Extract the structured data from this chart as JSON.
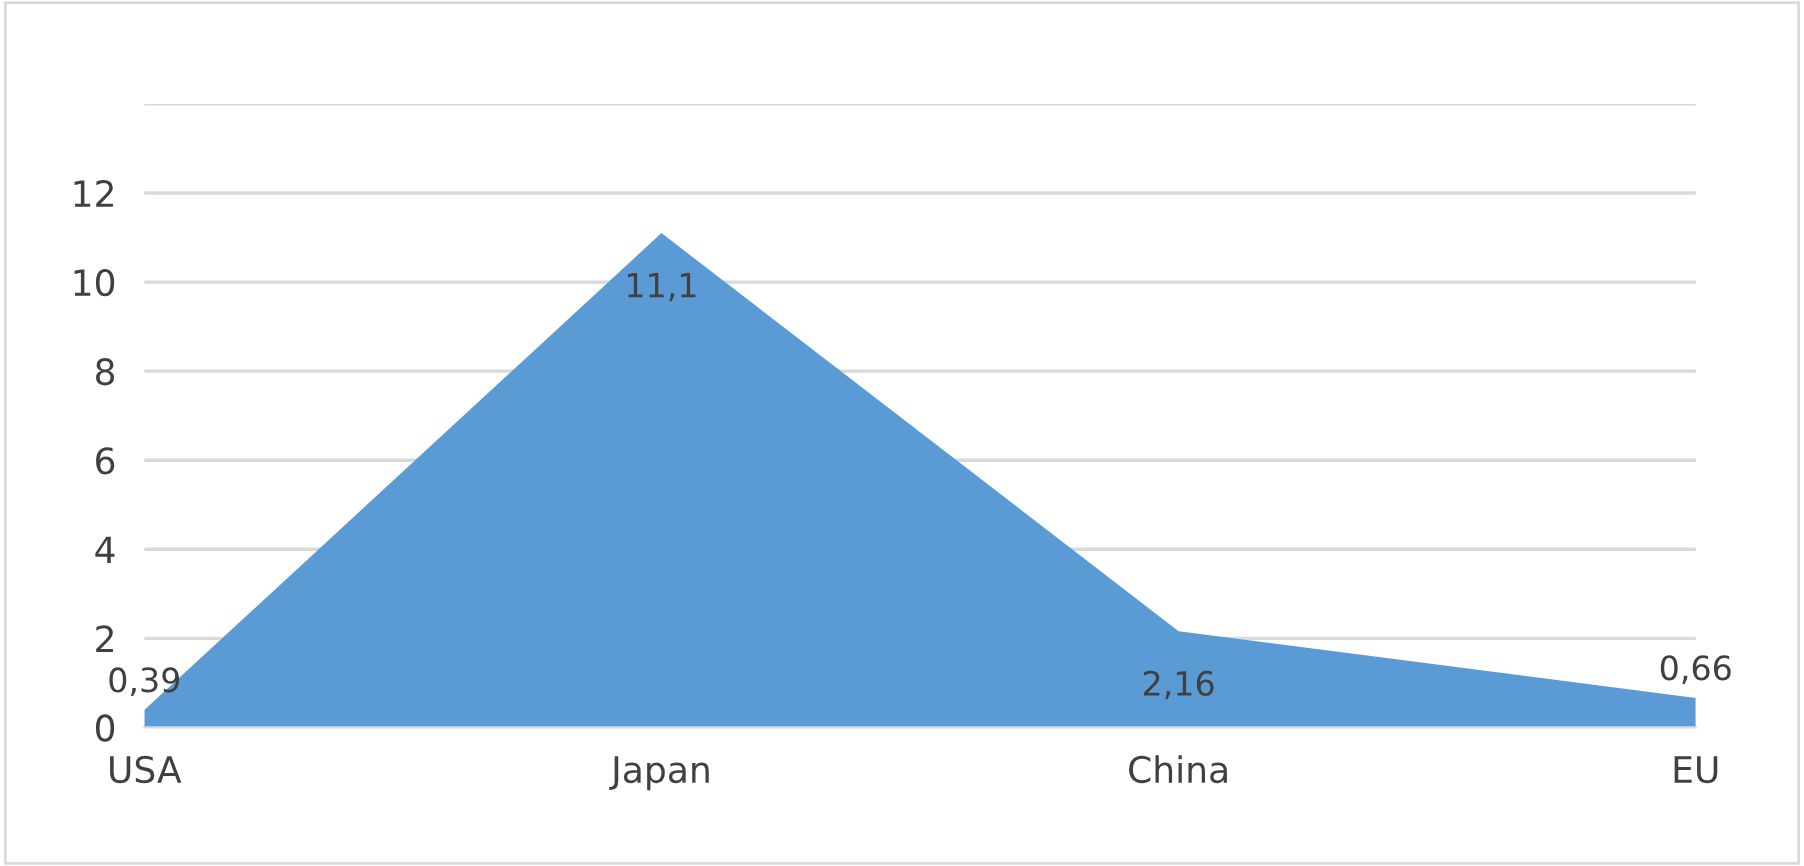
{
  "chart_data": {
    "type": "area",
    "categories": [
      "USA",
      "Japan",
      "China",
      "EU"
    ],
    "series": [
      {
        "color": "#5b9bd5",
        "values": [
          0.39,
          11.1,
          2.16,
          0.66
        ],
        "value_labels": [
          "0,39",
          "11,1",
          "2,16",
          "0,66"
        ]
      }
    ],
    "ylim": [
      0,
      14
    ],
    "yticks": [
      0,
      2,
      4,
      6,
      8,
      10,
      12,
      {
        "value": 14,
        "label": null
      }
    ],
    "grid": "y"
  }
}
